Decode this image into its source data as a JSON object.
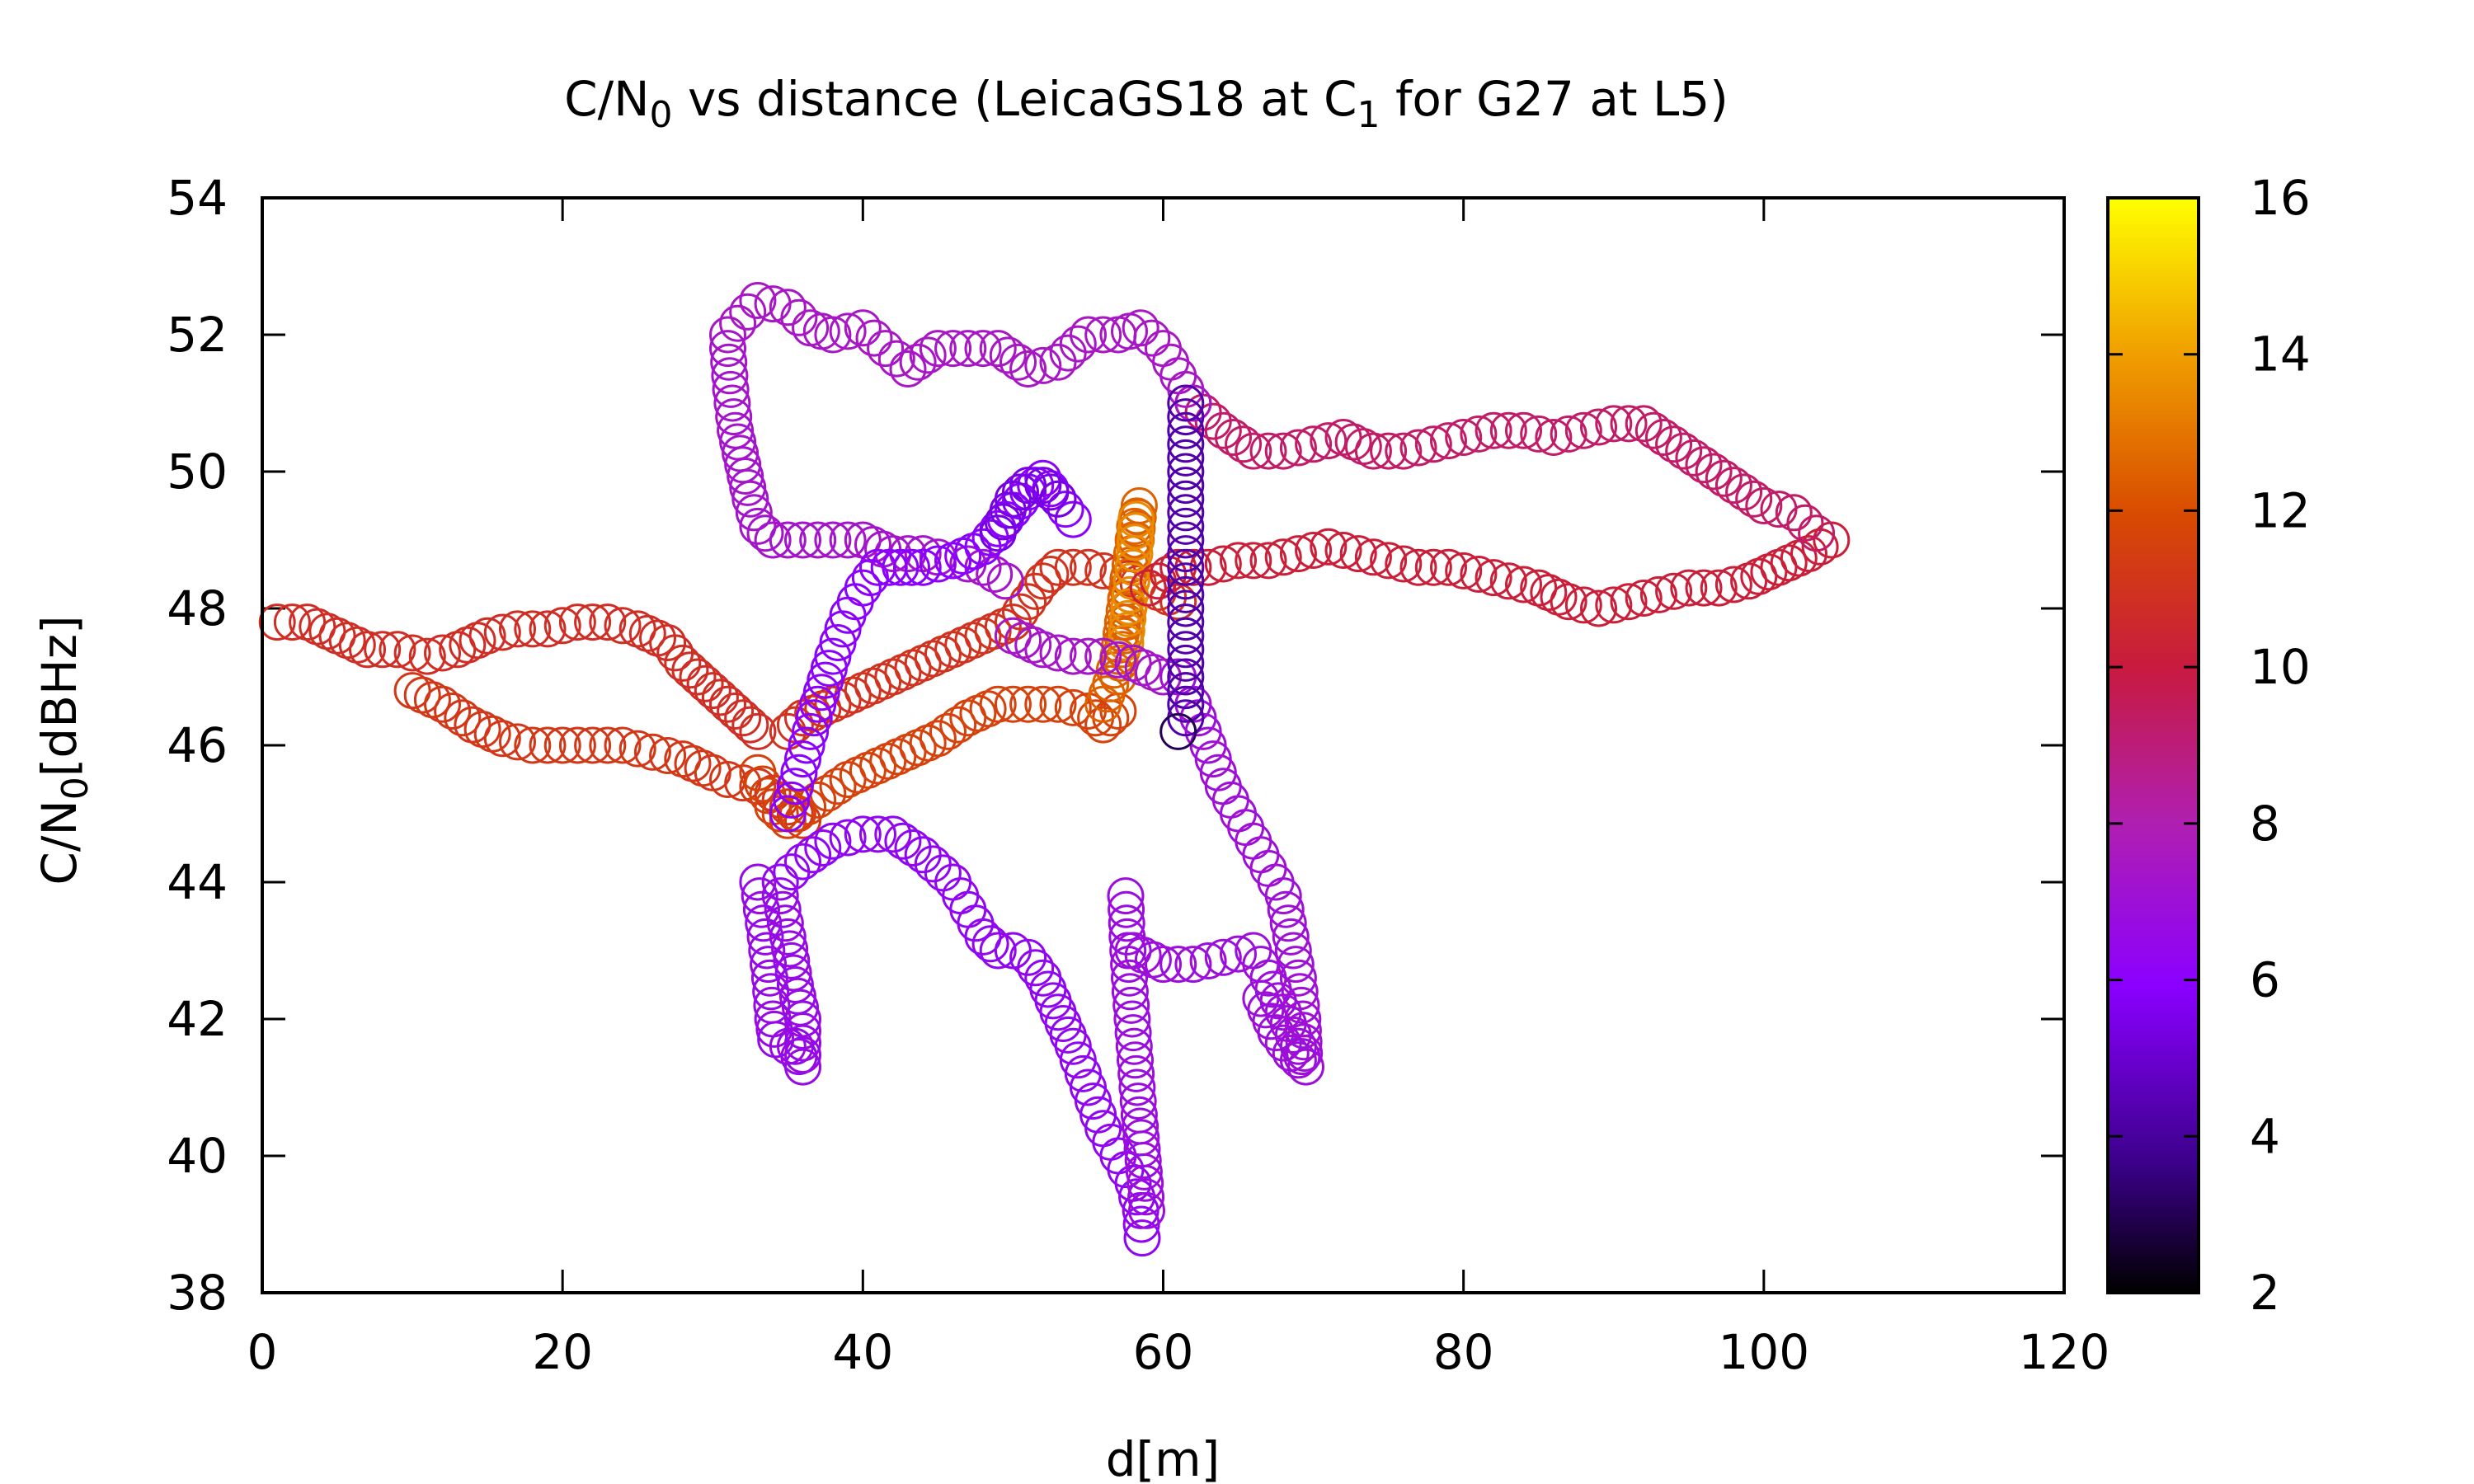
{
  "chart_data": {
    "type": "scatter",
    "title": {
      "pre": "C/N",
      "sub1": "0",
      "mid": " vs distance (LeicaGS18 at C",
      "sub2": "1",
      "post": " for G27 at L5)"
    },
    "xlabel": "d[m]",
    "ylabel": {
      "pre": "C/N",
      "sub": "0",
      "post": "[dBHz]"
    },
    "xlim": [
      0,
      120
    ],
    "ylim": [
      38,
      54
    ],
    "xticks": [
      0,
      20,
      40,
      60,
      80,
      100,
      120
    ],
    "yticks": [
      38,
      40,
      42,
      44,
      46,
      48,
      50,
      52,
      54
    ],
    "marker": "open-circle",
    "colorbar": {
      "min": 2,
      "max": 16,
      "ticks": [
        2,
        4,
        6,
        8,
        10,
        12,
        14,
        16
      ],
      "colormap": "gnuplot (black-purple-red-orange-yellow)"
    },
    "series": [
      {
        "c": 10.8,
        "points": [
          [
            1,
            47.8
          ],
          [
            3,
            47.8
          ],
          [
            5,
            47.6
          ],
          [
            7,
            47.4
          ],
          [
            9,
            47.4
          ],
          [
            11,
            47.3
          ],
          [
            13,
            47.4
          ],
          [
            15,
            47.6
          ],
          [
            17,
            47.7
          ],
          [
            19,
            47.7
          ],
          [
            21,
            47.8
          ],
          [
            23,
            47.8
          ],
          [
            25,
            47.7
          ],
          [
            27,
            47.5
          ],
          [
            28,
            47.2
          ],
          [
            29,
            47
          ],
          [
            30,
            46.8
          ],
          [
            31,
            46.6
          ],
          [
            32,
            46.4
          ],
          [
            33,
            46.2
          ]
        ]
      },
      {
        "c": 11.2,
        "points": [
          [
            10,
            46.8
          ],
          [
            12,
            46.6
          ],
          [
            14,
            46.3
          ],
          [
            16,
            46.1
          ],
          [
            18,
            46
          ],
          [
            20,
            46
          ],
          [
            22,
            46
          ],
          [
            24,
            46
          ],
          [
            26,
            45.9
          ],
          [
            28,
            45.8
          ],
          [
            30,
            45.6
          ],
          [
            31,
            45.5
          ],
          [
            33,
            45.4
          ],
          [
            34,
            45.3
          ],
          [
            35,
            45.1
          ],
          [
            36,
            44.9
          ]
        ]
      },
      {
        "c": 11.6,
        "points": [
          [
            33,
            45.6
          ],
          [
            34,
            45.1
          ],
          [
            35,
            44.9
          ],
          [
            37,
            45.2
          ],
          [
            39,
            45.5
          ],
          [
            41,
            45.7
          ],
          [
            43,
            45.9
          ],
          [
            45,
            46.1
          ],
          [
            47,
            46.4
          ],
          [
            49,
            46.6
          ],
          [
            51,
            46.6
          ],
          [
            53,
            46.6
          ],
          [
            55,
            46.5
          ],
          [
            56,
            46.3
          ],
          [
            57,
            46.5
          ]
        ]
      },
      {
        "c": 11.0,
        "points": [
          [
            35,
            46.2
          ],
          [
            36,
            46.4
          ],
          [
            38,
            46.6
          ],
          [
            40,
            46.8
          ],
          [
            42,
            47
          ],
          [
            44,
            47.2
          ],
          [
            46,
            47.4
          ],
          [
            48,
            47.6
          ],
          [
            50,
            47.8
          ],
          [
            51,
            48.1
          ],
          [
            52,
            48.4
          ],
          [
            53,
            48.6
          ],
          [
            55,
            48.6
          ],
          [
            57,
            48.5
          ],
          [
            59,
            48.3
          ],
          [
            61,
            48.1
          ]
        ]
      },
      {
        "c": 12.5,
        "points": [
          [
            56,
            46.6
          ],
          [
            56.5,
            46.9
          ],
          [
            57,
            47.3
          ],
          [
            57.3,
            47.8
          ],
          [
            57.6,
            48.3
          ],
          [
            57.9,
            48.8
          ],
          [
            58.1,
            49.2
          ],
          [
            58.4,
            49.5
          ],
          [
            58.2,
            49
          ],
          [
            57.7,
            48
          ],
          [
            57,
            47
          ]
        ]
      },
      {
        "c": 13.5,
        "points": [
          [
            57.5,
            47.5
          ],
          [
            57.8,
            48.2
          ],
          [
            58.1,
            48.8
          ],
          [
            58.2,
            49.3
          ]
        ]
      },
      {
        "c": 10.2,
        "points": [
          [
            59,
            48.3
          ],
          [
            61,
            48.6
          ],
          [
            63,
            48.6
          ],
          [
            65,
            48.7
          ],
          [
            67,
            48.7
          ],
          [
            69,
            48.8
          ],
          [
            71,
            48.9
          ],
          [
            73,
            48.8
          ],
          [
            75,
            48.7
          ],
          [
            77,
            48.6
          ],
          [
            79,
            48.6
          ],
          [
            81,
            48.5
          ],
          [
            83,
            48.4
          ],
          [
            85,
            48.3
          ],
          [
            87,
            48.1
          ],
          [
            89,
            48
          ],
          [
            91,
            48.1
          ],
          [
            93,
            48.2
          ],
          [
            95,
            48.3
          ],
          [
            97,
            48.3
          ],
          [
            99,
            48.4
          ],
          [
            101,
            48.6
          ],
          [
            103,
            48.8
          ],
          [
            104.5,
            49
          ]
        ]
      },
      {
        "c": 9.3,
        "points": [
          [
            62,
            51
          ],
          [
            64,
            50.6
          ],
          [
            66,
            50.3
          ],
          [
            68,
            50.3
          ],
          [
            70,
            50.4
          ],
          [
            72,
            50.5
          ],
          [
            74,
            50.3
          ],
          [
            76,
            50.3
          ],
          [
            78,
            50.4
          ],
          [
            80,
            50.5
          ],
          [
            82,
            50.6
          ],
          [
            84,
            50.6
          ],
          [
            86,
            50.5
          ],
          [
            88,
            50.6
          ],
          [
            90,
            50.7
          ],
          [
            92,
            50.7
          ],
          [
            94,
            50.4
          ],
          [
            96,
            50.1
          ],
          [
            98,
            49.8
          ],
          [
            100,
            49.5
          ],
          [
            102,
            49.4
          ],
          [
            103.5,
            49.1
          ]
        ]
      },
      {
        "c": 7.5,
        "points": [
          [
            31,
            52
          ],
          [
            33,
            52.5
          ],
          [
            35,
            52.4
          ],
          [
            36.5,
            52.1
          ],
          [
            38,
            52
          ],
          [
            40,
            52.1
          ],
          [
            41.5,
            51.8
          ],
          [
            43,
            51.5
          ],
          [
            45,
            51.8
          ],
          [
            47,
            51.8
          ],
          [
            49,
            51.8
          ],
          [
            51,
            51.5
          ],
          [
            53,
            51.6
          ],
          [
            55,
            52
          ],
          [
            57,
            52
          ],
          [
            58.5,
            52.1
          ],
          [
            60,
            51.8
          ],
          [
            61,
            51.4
          ],
          [
            62,
            51
          ]
        ]
      },
      {
        "c": 7.3,
        "points": [
          [
            31,
            51.8
          ],
          [
            31.2,
            51.2
          ],
          [
            31.5,
            50.6
          ],
          [
            32,
            50.1
          ],
          [
            32.5,
            49.6
          ],
          [
            33,
            49.2
          ],
          [
            34,
            49
          ],
          [
            36,
            49
          ],
          [
            38,
            49
          ],
          [
            40,
            49
          ],
          [
            42,
            48.8
          ],
          [
            44,
            48.8
          ],
          [
            46,
            48.7
          ],
          [
            48,
            48.6
          ],
          [
            49.5,
            48.4
          ]
        ]
      },
      {
        "c": 6.0,
        "points": [
          [
            35,
            45
          ],
          [
            36,
            45.8
          ],
          [
            37,
            46.6
          ],
          [
            38,
            47.3
          ],
          [
            39,
            47.9
          ],
          [
            40,
            48.3
          ],
          [
            41,
            48.6
          ],
          [
            42.5,
            48.6
          ],
          [
            44,
            48.6
          ],
          [
            46,
            48.7
          ],
          [
            48,
            48.9
          ],
          [
            49.5,
            49.3
          ],
          [
            51,
            49.7
          ],
          [
            52,
            49.9
          ],
          [
            53,
            49.6
          ],
          [
            54,
            49.3
          ]
        ]
      },
      {
        "c": 5.4,
        "points": [
          [
            49,
            49.1
          ],
          [
            50,
            49.6
          ],
          [
            51,
            49.8
          ],
          [
            52,
            49.8
          ],
          [
            53,
            49.6
          ]
        ]
      },
      {
        "c": 6.3,
        "points": [
          [
            34.5,
            44
          ],
          [
            36,
            44.3
          ],
          [
            38,
            44.6
          ],
          [
            40,
            44.7
          ],
          [
            42,
            44.7
          ],
          [
            44,
            44.4
          ],
          [
            46,
            44
          ],
          [
            47,
            43.6
          ],
          [
            48,
            43.2
          ],
          [
            49,
            43
          ],
          [
            50,
            43
          ],
          [
            51,
            42.9
          ],
          [
            52,
            42.6
          ],
          [
            53,
            42.1
          ],
          [
            54,
            41.6
          ],
          [
            55,
            41
          ],
          [
            56,
            40.4
          ],
          [
            57,
            40
          ],
          [
            58,
            39.6
          ],
          [
            58.5,
            39.2
          ],
          [
            58.6,
            38.8
          ]
        ]
      },
      {
        "c": 6.6,
        "points": [
          [
            33,
            44
          ],
          [
            33.5,
            43.2
          ],
          [
            33.8,
            42.6
          ],
          [
            34,
            42
          ],
          [
            34.2,
            41.7
          ],
          [
            35,
            41.6
          ],
          [
            35.5,
            41.6
          ],
          [
            36,
            41.3
          ],
          [
            36,
            42
          ],
          [
            35.5,
            42.5
          ],
          [
            35,
            43.2
          ],
          [
            34.5,
            43.8
          ]
        ]
      },
      {
        "c": 6.8,
        "points": [
          [
            57.5,
            43.8
          ],
          [
            57.6,
            43.2
          ],
          [
            57.8,
            42.4
          ],
          [
            58,
            41.8
          ],
          [
            58.2,
            41.2
          ],
          [
            58.4,
            40.6
          ],
          [
            58.6,
            40.1
          ],
          [
            58.8,
            39.6
          ],
          [
            58.9,
            39.2
          ]
        ]
      },
      {
        "c": 6.9,
        "points": [
          [
            58,
            43
          ],
          [
            60,
            42.8
          ],
          [
            62,
            42.8
          ],
          [
            64,
            42.9
          ],
          [
            66,
            43
          ],
          [
            67,
            42.6
          ],
          [
            68,
            42.1
          ],
          [
            69,
            41.6
          ],
          [
            69.5,
            41.3
          ],
          [
            68.5,
            41.5
          ],
          [
            67.5,
            41.8
          ],
          [
            66.5,
            42.3
          ]
        ]
      },
      {
        "c": 7.0,
        "points": [
          [
            61,
            47
          ],
          [
            62,
            46.6
          ],
          [
            63,
            46
          ],
          [
            64,
            45.4
          ],
          [
            65,
            45
          ],
          [
            66,
            44.6
          ],
          [
            67,
            44.2
          ],
          [
            68,
            43.8
          ],
          [
            68.5,
            43.2
          ],
          [
            69,
            42.6
          ],
          [
            69.3,
            42
          ],
          [
            69.4,
            41.5
          ]
        ]
      },
      {
        "c": 7.4,
        "points": [
          [
            50,
            47.6
          ],
          [
            52,
            47.4
          ],
          [
            54,
            47.3
          ],
          [
            56,
            47.3
          ],
          [
            58,
            47.2
          ],
          [
            60,
            47
          ]
        ]
      },
      {
        "c": 4.3,
        "points": [
          [
            61.5,
            51
          ],
          [
            61.5,
            50.2
          ],
          [
            61.5,
            49.4
          ],
          [
            61.5,
            48.6
          ],
          [
            61.5,
            47.8
          ],
          [
            61.5,
            47
          ],
          [
            61.5,
            46.4
          ]
        ]
      },
      {
        "c": 3.0,
        "points": [
          [
            61,
            46.2
          ]
        ]
      }
    ]
  }
}
